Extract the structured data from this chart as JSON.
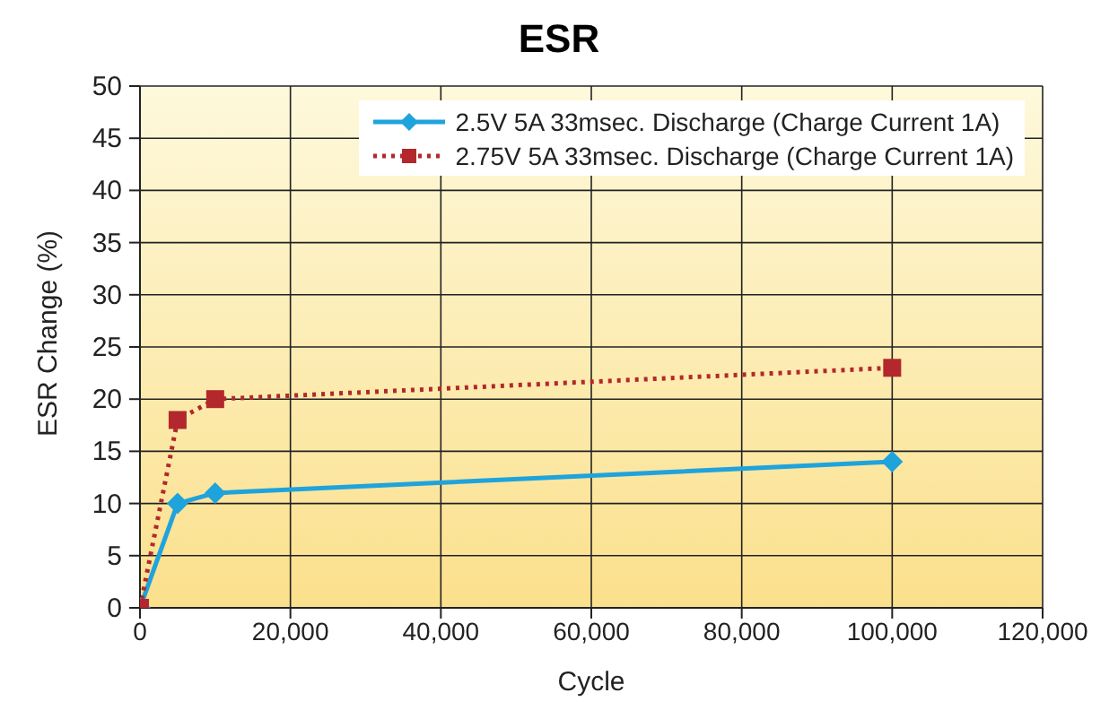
{
  "chart_data": {
    "type": "line",
    "title": "ESR",
    "xlabel": "Cycle",
    "ylabel": "ESR Change (%)",
    "x": [
      0,
      5000,
      10000,
      100000
    ],
    "series": [
      {
        "name": "2.5V 5A 33msec. Discharge (Charge Current 1A)",
        "color": "#1fa3dc",
        "values": [
          0,
          10,
          11,
          14
        ],
        "marker": "diamond",
        "line_style": "solid"
      },
      {
        "name": "2.75V 5A 33msec. Discharge (Charge Current 1A)",
        "color": "#b3282d",
        "values": [
          0,
          18,
          20,
          23
        ],
        "marker": "square",
        "line_style": "dotted"
      }
    ],
    "xlim": [
      0,
      120000
    ],
    "xticks": [
      {
        "value": 0,
        "label": "0"
      },
      {
        "value": 20000,
        "label": "20,000"
      },
      {
        "value": 40000,
        "label": "40,000"
      },
      {
        "value": 60000,
        "label": "60,000"
      },
      {
        "value": 80000,
        "label": "80,000"
      },
      {
        "value": 100000,
        "label": "100,000"
      },
      {
        "value": 120000,
        "label": "120,000"
      }
    ],
    "ylim": [
      0,
      50
    ],
    "yticks": [
      0,
      5,
      10,
      15,
      20,
      25,
      30,
      35,
      40,
      45,
      50
    ],
    "grid": true,
    "legend": "top right"
  }
}
